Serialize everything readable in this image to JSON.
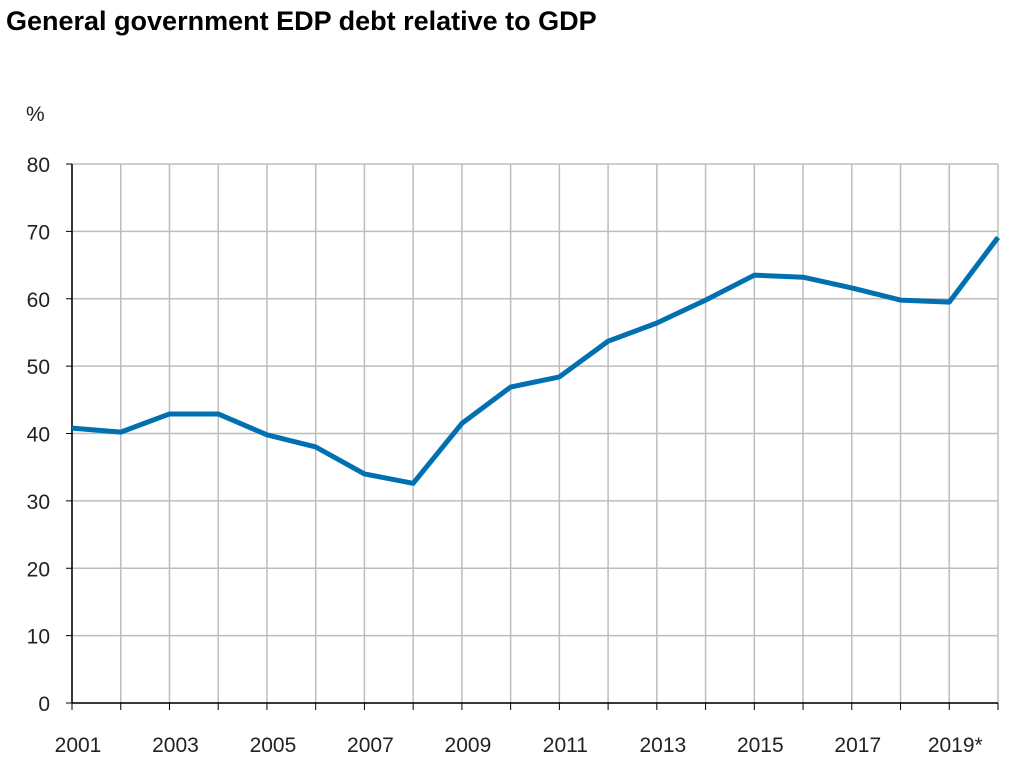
{
  "chart_data": {
    "type": "line",
    "title": "General government EDP debt relative to GDP",
    "ylabel": "%",
    "xlabel": "",
    "ylim": [
      0,
      80
    ],
    "yticks": [
      0,
      10,
      20,
      30,
      40,
      50,
      60,
      70,
      80
    ],
    "grid": true,
    "x": [
      2001,
      2002,
      2003,
      2004,
      2005,
      2006,
      2007,
      2008,
      2009,
      2010,
      2011,
      2012,
      2013,
      2014,
      2015,
      2016,
      2017,
      2018,
      2019,
      2020
    ],
    "xtick_labels": [
      {
        "x": 2001,
        "label": "2001"
      },
      {
        "x": 2003,
        "label": "2003"
      },
      {
        "x": 2005,
        "label": "2005"
      },
      {
        "x": 2007,
        "label": "2007"
      },
      {
        "x": 2009,
        "label": "2009"
      },
      {
        "x": 2011,
        "label": "2011"
      },
      {
        "x": 2013,
        "label": "2013"
      },
      {
        "x": 2015,
        "label": "2015"
      },
      {
        "x": 2017,
        "label": "2017"
      },
      {
        "x": 2019,
        "label": "2019*"
      }
    ],
    "series": [
      {
        "values": [
          40.8,
          40.2,
          42.9,
          42.9,
          39.8,
          38.0,
          34.0,
          32.6,
          41.5,
          46.9,
          48.4,
          53.7,
          56.4,
          59.8,
          63.5,
          63.2,
          61.6,
          59.8,
          59.5,
          69.1
        ],
        "color": "#0070B0"
      }
    ],
    "colors": {
      "line": "#0070B0",
      "grid": "#BDBDBD",
      "axis": "#000000"
    }
  }
}
